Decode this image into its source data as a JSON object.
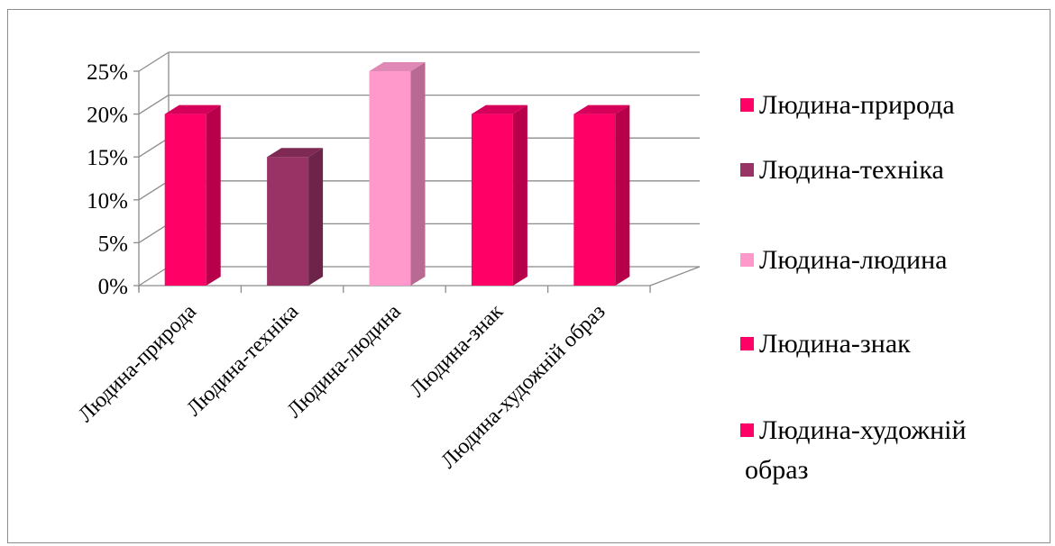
{
  "chart_data": {
    "type": "bar",
    "style": "3d-column",
    "categories": [
      "Людина-природа",
      "Людина-техніка",
      "Людина-людина",
      "Людина-знак",
      "Людина-художній образ"
    ],
    "values": [
      20,
      15,
      25,
      20,
      20
    ],
    "value_format": "percent",
    "title": "",
    "xlabel": "",
    "ylabel": "",
    "ylim": [
      0,
      25
    ],
    "yticks": [
      0,
      5,
      10,
      15,
      20,
      25
    ],
    "ytick_labels": [
      "0%",
      "5%",
      "10%",
      "15%",
      "20%",
      "25%"
    ],
    "grid": true,
    "legend_position": "right",
    "legend": [
      {
        "label": "Людина-природа",
        "lines": [
          "Людина-природа"
        ]
      },
      {
        "label": "Людина-техніка",
        "lines": [
          "Людина-техніка"
        ]
      },
      {
        "label": "Людина-людина",
        "lines": [
          "Людина-людина"
        ]
      },
      {
        "label": "Людина-знак",
        "lines": [
          "Людина-знак"
        ]
      },
      {
        "label": "Людина-художній образ",
        "lines": [
          "Людина-художній",
          "образ"
        ]
      }
    ],
    "colors": {
      "front": [
        "#ff0066",
        "#993366",
        "#ff99cc",
        "#ff0066",
        "#ff0066"
      ],
      "side": [
        "#b8004a",
        "#6e2449",
        "#b86a92",
        "#b8004a",
        "#b8004a"
      ],
      "top": [
        "#d6005a",
        "#7f2a55",
        "#e089b6",
        "#d6005a",
        "#d6005a"
      ],
      "grid": "#8c8c8c"
    }
  }
}
